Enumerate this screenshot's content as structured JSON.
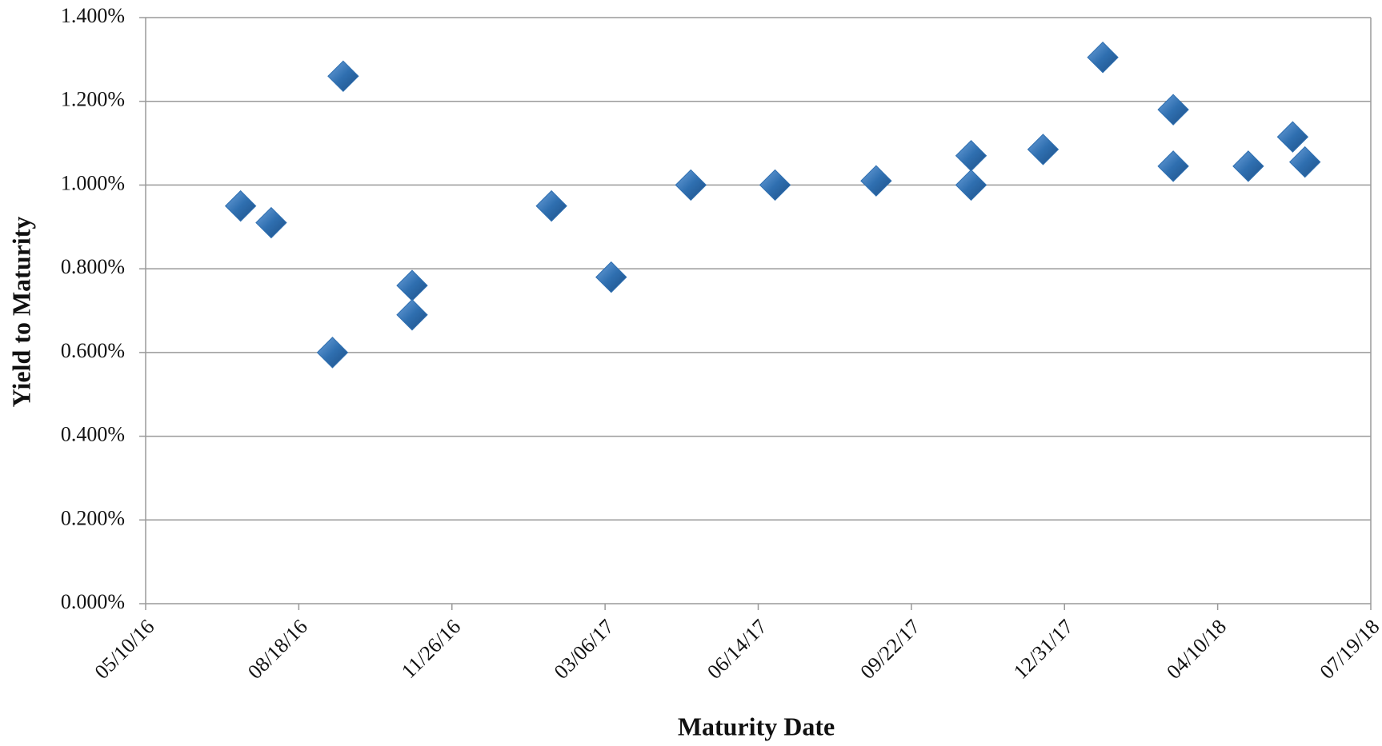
{
  "chart_data": {
    "type": "scatter",
    "x_label": "Maturity Date",
    "y_label": "Yield to Maturity",
    "x": [
      "07/11/16",
      "07/31/16",
      "09/09/16",
      "09/16/16",
      "10/31/16",
      "10/31/16",
      "01/30/17",
      "03/10/17",
      "05/01/17",
      "06/25/17",
      "08/30/17",
      "10/31/17",
      "10/31/17",
      "12/17/17",
      "01/25/18",
      "03/12/18",
      "03/12/18",
      "04/30/18",
      "05/29/18",
      "06/06/18"
    ],
    "values": [
      0.95,
      0.91,
      0.6,
      1.26,
      0.76,
      0.69,
      0.95,
      0.78,
      1.0,
      1.0,
      1.01,
      1.07,
      1.0,
      1.085,
      1.305,
      1.18,
      1.045,
      1.045,
      1.115,
      1.055
    ],
    "color": "#2f6fb0",
    "xlim": [
      "05/10/16",
      "07/19/18"
    ],
    "xticks": [
      "05/10/16",
      "08/18/16",
      "11/26/16",
      "03/06/17",
      "06/14/17",
      "09/22/17",
      "12/31/17",
      "04/10/18",
      "07/19/18"
    ],
    "ylim": [
      0,
      1.4
    ],
    "yticks": [
      {
        "value": 0,
        "label": "0.000%"
      },
      {
        "value": 0.2,
        "label": "0.200%"
      },
      {
        "value": 0.4,
        "label": "0.400%"
      },
      {
        "value": 0.6,
        "label": "0.600%"
      },
      {
        "value": 0.8,
        "label": "0.800%"
      },
      {
        "value": 1.0,
        "label": "1.000%"
      },
      {
        "value": 1.2,
        "label": "1.200%"
      },
      {
        "value": 1.4,
        "label": "1.400%"
      }
    ],
    "grid": true
  }
}
